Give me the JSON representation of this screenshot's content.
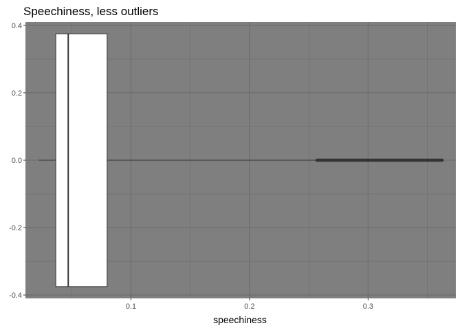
{
  "chart_data": {
    "type": "boxplot",
    "title": "Speechiness, less outliers",
    "xlabel": "speechiness",
    "ylabel": "",
    "xlim": [
      0.011,
      0.374
    ],
    "ylim": [
      -0.41,
      0.41
    ],
    "x_ticks": [
      0.1,
      0.2,
      0.3
    ],
    "x_tick_labels": [
      "0.1",
      "0.2",
      "0.3"
    ],
    "y_ticks": [
      0.4,
      0.2,
      0.0,
      -0.2,
      -0.4
    ],
    "y_tick_labels": [
      "0.4",
      "0.2",
      "0.0",
      "-0.2",
      "-0.4"
    ],
    "grid": true,
    "panel_background": "#7f7f7f",
    "box": {
      "whisker_low": 0.0223,
      "q1": 0.0366,
      "median": 0.0471,
      "q3": 0.0799,
      "whisker_high": 0.2569,
      "y_half_width": 0.375,
      "fill": "#ffffff",
      "outline": "#333333"
    },
    "outliers_range": [
      0.2569,
      0.3625
    ],
    "outlier_color": "#333333"
  }
}
